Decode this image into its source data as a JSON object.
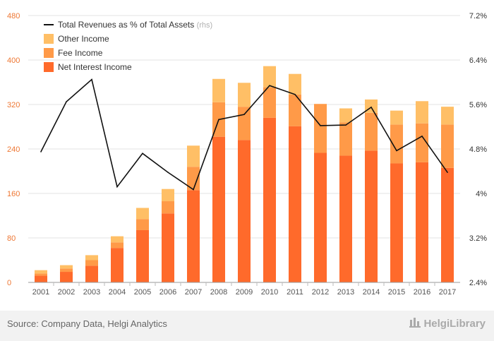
{
  "chart_data": {
    "type": "bar",
    "stacked": true,
    "categories": [
      "2001",
      "2002",
      "2003",
      "2004",
      "2005",
      "2006",
      "2007",
      "2008",
      "2009",
      "2010",
      "2011",
      "2012",
      "2013",
      "2014",
      "2015",
      "2016",
      "2017"
    ],
    "series": [
      {
        "name": "Net Interest Income",
        "color": "#ff6a2b",
        "values": [
          12,
          19,
          30,
          62,
          94,
          124,
          166,
          262,
          256,
          296,
          281,
          233,
          228,
          237,
          214,
          216,
          206
        ]
      },
      {
        "name": "Fee Income",
        "color": "#ff9a48",
        "values": [
          4,
          6,
          10,
          10,
          20,
          22,
          42,
          62,
          60,
          55,
          57,
          88,
          60,
          68,
          70,
          70,
          78
        ]
      },
      {
        "name": "Other Income",
        "color": "#ffbf66",
        "values": [
          6,
          6,
          9,
          11,
          20,
          22,
          38,
          42,
          43,
          38,
          37,
          0,
          25,
          24,
          25,
          40,
          32
        ]
      }
    ],
    "line": {
      "name": "Total Revenues as % of Total Assets",
      "note": "(rhs)",
      "color": "#111111",
      "values": [
        4.75,
        5.65,
        6.05,
        4.12,
        4.72,
        4.38,
        4.07,
        5.33,
        5.42,
        5.94,
        5.78,
        5.22,
        5.23,
        5.55,
        4.77,
        5.03,
        4.38
      ]
    },
    "yleft": {
      "min": 0,
      "max": 480,
      "ticks": [
        "0",
        "80",
        "160",
        "240",
        "320",
        "400",
        "480"
      ]
    },
    "yright": {
      "min": 2.4,
      "max": 7.2,
      "ticks": [
        "2.4%",
        "3.2%",
        "4%",
        "4.8%",
        "5.6%",
        "6.4%",
        "7.2%"
      ]
    },
    "grid": true,
    "legend_position": "top-left"
  },
  "footer": {
    "source": "Source: Company Data, Helgi Analytics",
    "brand": "HelgiLibrary"
  }
}
